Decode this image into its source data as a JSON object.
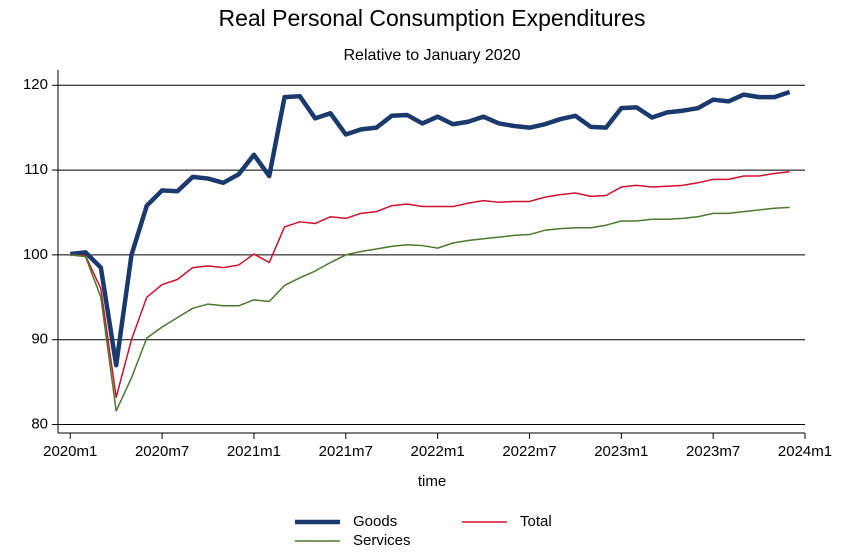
{
  "chart_data": {
    "type": "line",
    "title": "Real Personal Consumption Expenditures",
    "subtitle": "Relative to January 2020",
    "x_label": "time",
    "x": [
      720,
      721,
      722,
      723,
      724,
      725,
      726,
      727,
      728,
      729,
      730,
      731,
      732,
      733,
      734,
      735,
      736,
      737,
      738,
      739,
      740,
      741,
      742,
      743,
      744,
      745,
      746,
      747,
      748,
      749,
      750,
      751,
      752,
      753,
      754,
      755,
      756,
      757,
      758,
      759,
      760,
      761,
      762,
      763,
      764,
      765,
      766,
      767
    ],
    "series": [
      {
        "name": "Goods",
        "color": "#1a3a6e",
        "values": [
          100.1,
          100.3,
          98.5,
          87,
          100,
          105.8,
          107.6,
          107.5,
          109.2,
          109,
          108.5,
          109.5,
          111.8,
          109.3,
          118.6,
          118.7,
          116.1,
          116.7,
          114.2,
          114.8,
          115,
          116.4,
          116.5,
          115.5,
          116.3,
          115.4,
          115.7,
          116.3,
          115.5,
          115.2,
          115,
          115.4,
          116,
          116.4,
          115.1,
          115,
          117.3,
          117.4,
          116.2,
          116.8,
          117,
          117.3,
          118.3,
          118.1,
          118.9,
          118.6,
          118.6,
          119.2
        ]
      },
      {
        "name": "Total",
        "color": "#d0102e",
        "values": [
          100,
          99.9,
          96,
          83.2,
          90,
          95,
          96.5,
          97.1,
          98.5,
          98.7,
          98.5,
          98.8,
          100.1,
          99.1,
          103.3,
          103.9,
          103.7,
          104.5,
          104.3,
          104.9,
          105.1,
          105.8,
          106,
          105.7,
          105.7,
          105.7,
          106.1,
          106.4,
          106.2,
          106.3,
          106.3,
          106.8,
          107.1,
          107.3,
          106.9,
          107,
          108,
          108.2,
          108,
          108.1,
          108.2,
          108.5,
          108.9,
          108.9,
          109.3,
          109.3,
          109.6,
          109.8
        ]
      },
      {
        "name": "Services",
        "color": "#4a7a2e",
        "values": [
          100,
          99.8,
          95,
          81.6,
          85.5,
          90.2,
          91.5,
          92.6,
          93.7,
          94.2,
          94,
          94,
          94.7,
          94.5,
          96.4,
          97.3,
          98.1,
          99.1,
          100,
          100.4,
          100.7,
          101,
          101.2,
          101.1,
          100.8,
          101.4,
          101.7,
          101.9,
          102.1,
          102.3,
          102.4,
          102.9,
          103.1,
          103.2,
          103.2,
          103.5,
          104,
          104,
          104.2,
          104.2,
          104.3,
          104.5,
          104.9,
          104.9,
          105.1,
          105.3,
          105.5,
          105.6
        ]
      }
    ],
    "xlim": [
      719.2,
      768
    ],
    "ylim": [
      79,
      121.8
    ],
    "xticks": [
      {
        "value": 720,
        "label": "2020m1"
      },
      {
        "value": 726,
        "label": "2020m7"
      },
      {
        "value": 732,
        "label": "2021m1"
      },
      {
        "value": 738,
        "label": "2021m7"
      },
      {
        "value": 744,
        "label": "2022m1"
      },
      {
        "value": 750,
        "label": "2022m7"
      },
      {
        "value": 756,
        "label": "2023m1"
      },
      {
        "value": 762,
        "label": "2023m7"
      },
      {
        "value": 768,
        "label": "2024m1"
      }
    ],
    "yticks": [
      80,
      90,
      100,
      110,
      120
    ],
    "grid": true,
    "legend": "bottom"
  }
}
